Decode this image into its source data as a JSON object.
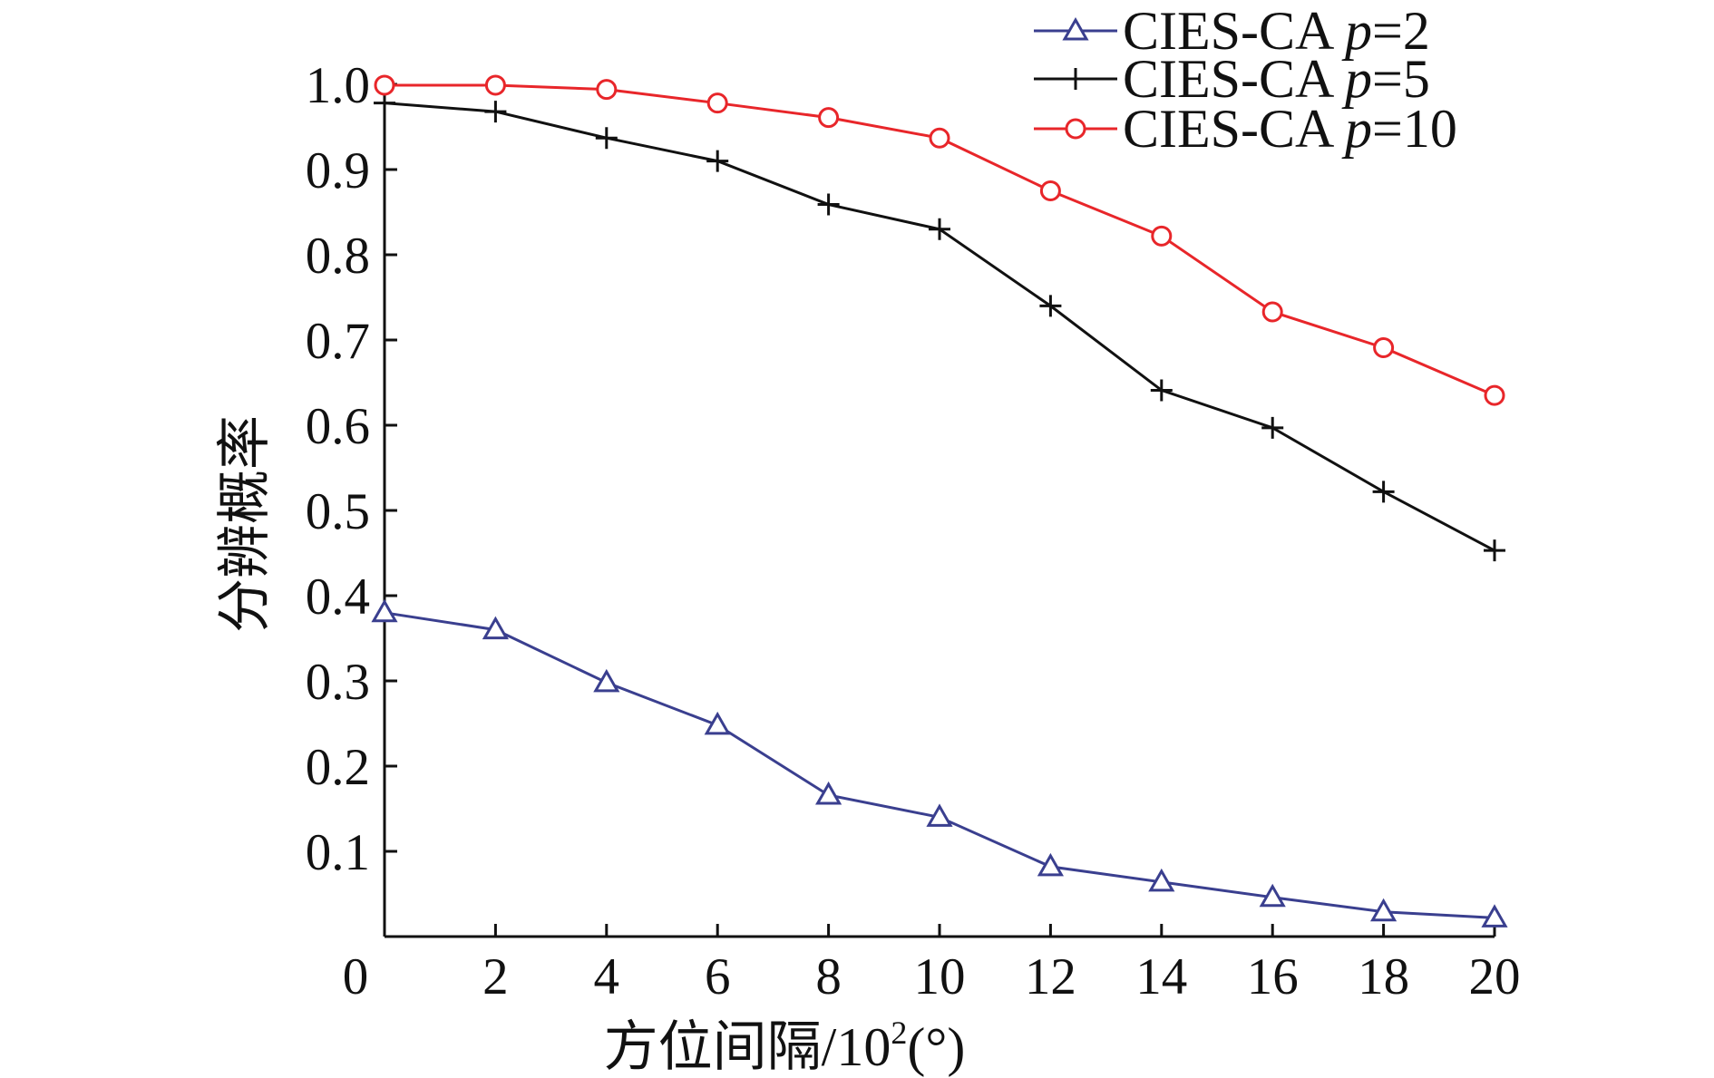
{
  "chart_data": {
    "type": "line",
    "title": "",
    "xlabel": "方位间隔/10²(°)",
    "xlabel_parts": {
      "main": "方位间隔/10",
      "sup": "2",
      "tail": "(°)"
    },
    "ylabel": "分辨概率",
    "x": [
      0,
      2,
      4,
      6,
      8,
      10,
      12,
      14,
      16,
      18,
      20
    ],
    "xlim": [
      0,
      20
    ],
    "ylim": [
      0,
      1.0
    ],
    "xticks": [
      0,
      2,
      4,
      6,
      8,
      10,
      12,
      14,
      16,
      18,
      20
    ],
    "xtick_labels": [
      "0",
      "2",
      "4",
      "6",
      "8",
      "10",
      "12",
      "14",
      "16",
      "18",
      "20"
    ],
    "yticks": [
      0.1,
      0.2,
      0.3,
      0.4,
      0.5,
      0.6,
      0.7,
      0.8,
      0.9,
      1.0
    ],
    "ytick_labels": [
      "0.1",
      "0.2",
      "0.3",
      "0.4",
      "0.5",
      "0.6",
      "0.7",
      "0.8",
      "0.9",
      "1.0"
    ],
    "grid": false,
    "legend_position": "top-right",
    "series": [
      {
        "name": "CIES-CA p=2",
        "legend_prefix": "CIES-CA ",
        "legend_var": "p",
        "legend_suffix": "=2",
        "color": "#3a3f8f",
        "marker": "triangle",
        "values": [
          0.38,
          0.36,
          0.298,
          0.248,
          0.166,
          0.14,
          0.082,
          0.064,
          0.046,
          0.029,
          0.022
        ]
      },
      {
        "name": "CIES-CA p=5",
        "legend_prefix": "CIES-CA ",
        "legend_var": "p",
        "legend_suffix": "=5",
        "color": "#111111",
        "marker": "plus",
        "values": [
          0.978,
          0.968,
          0.937,
          0.91,
          0.859,
          0.83,
          0.74,
          0.641,
          0.597,
          0.522,
          0.453
        ]
      },
      {
        "name": "CIES-CA p=10",
        "legend_prefix": "CIES-CA ",
        "legend_var": "p",
        "legend_suffix": "=10",
        "color": "#e8262a",
        "marker": "circle",
        "values": [
          0.999,
          0.999,
          0.994,
          0.978,
          0.961,
          0.937,
          0.875,
          0.822,
          0.733,
          0.691,
          0.635
        ]
      }
    ]
  }
}
